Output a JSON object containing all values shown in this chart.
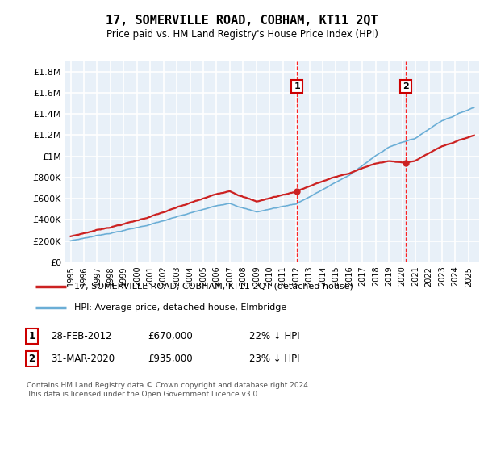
{
  "title": "17, SOMERVILLE ROAD, COBHAM, KT11 2QT",
  "subtitle": "Price paid vs. HM Land Registry's House Price Index (HPI)",
  "hpi_label": "HPI: Average price, detached house, Elmbridge",
  "price_label": "17, SOMERVILLE ROAD, COBHAM, KT11 2QT (detached house)",
  "annotation1_num": "1",
  "annotation1_date": "28-FEB-2012",
  "annotation1_price": "£670,000",
  "annotation1_pct": "22% ↓ HPI",
  "annotation2_num": "2",
  "annotation2_date": "31-MAR-2020",
  "annotation2_price": "£935,000",
  "annotation2_pct": "23% ↓ HPI",
  "footer": "Contains HM Land Registry data © Crown copyright and database right 2024.\nThis data is licensed under the Open Government Licence v3.0.",
  "ylim_max": 1900000,
  "yticks": [
    0,
    200000,
    400000,
    600000,
    800000,
    1000000,
    1200000,
    1400000,
    1600000,
    1800000
  ],
  "hpi_color": "#6baed6",
  "price_color": "#cc2222",
  "plot_bg": "#e8f0f8",
  "grid_color": "#ffffff",
  "sale1_year": 2012.15,
  "sale1_price": 670000,
  "sale2_year": 2020.25,
  "sale2_price": 935000,
  "start_year": 1995,
  "n_months": 366
}
